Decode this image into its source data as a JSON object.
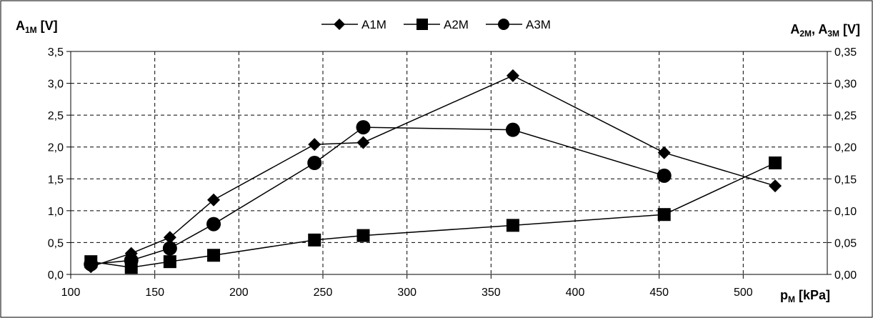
{
  "chart_data": {
    "type": "line",
    "title": "",
    "xlabel": "p",
    "xlabel_sub": "M",
    "xlabel_unit": " [kPa]",
    "ylabel_left": "A",
    "ylabel_left_sub": "1M",
    "ylabel_left_unit": " [V]",
    "ylabel_right_a": "A",
    "ylabel_right_a_sub": "2M",
    "ylabel_right_sep": ", ",
    "ylabel_right_b": "A",
    "ylabel_right_b_sub": "3M",
    "ylabel_right_unit": " [V]",
    "xlim": [
      100,
      550
    ],
    "ylim_left": [
      0,
      3.5
    ],
    "ylim_right": [
      0,
      0.35
    ],
    "x_ticks": [
      "100",
      "150",
      "200",
      "250",
      "300",
      "350",
      "400",
      "450",
      "500"
    ],
    "y_ticks_left": [
      "0,0",
      "0,5",
      "1,0",
      "1,5",
      "2,0",
      "2,5",
      "3,0",
      "3,5"
    ],
    "y_ticks_right": [
      "0,00",
      "0,05",
      "0,10",
      "0,15",
      "0,20",
      "0,25",
      "0,30",
      "0,35"
    ],
    "grid": true,
    "legend_position": "top-center",
    "series": [
      {
        "name": "A1M",
        "axis": "left",
        "marker": "diamond",
        "points": [
          [
            112,
            0.12
          ],
          [
            136,
            0.33
          ],
          [
            159,
            0.58
          ],
          [
            185,
            1.17
          ],
          [
            245,
            2.04
          ],
          [
            274,
            2.07
          ],
          [
            363,
            3.12
          ],
          [
            453,
            1.91
          ],
          [
            519,
            1.39
          ]
        ]
      },
      {
        "name": "A2M",
        "axis": "right",
        "marker": "square",
        "points": [
          [
            112,
            0.02
          ],
          [
            136,
            0.011
          ],
          [
            159,
            0.02
          ],
          [
            185,
            0.03
          ],
          [
            245,
            0.054
          ],
          [
            274,
            0.061
          ],
          [
            363,
            0.077
          ],
          [
            453,
            0.094
          ],
          [
            519,
            0.175
          ]
        ]
      },
      {
        "name": "A3M",
        "axis": "right",
        "marker": "circle",
        "points": [
          [
            112,
            0.016
          ],
          [
            136,
            0.022
          ],
          [
            159,
            0.041
          ],
          [
            185,
            0.079
          ],
          [
            245,
            0.175
          ],
          [
            274,
            0.231
          ],
          [
            363,
            0.227
          ],
          [
            453,
            0.155
          ]
        ]
      }
    ]
  }
}
